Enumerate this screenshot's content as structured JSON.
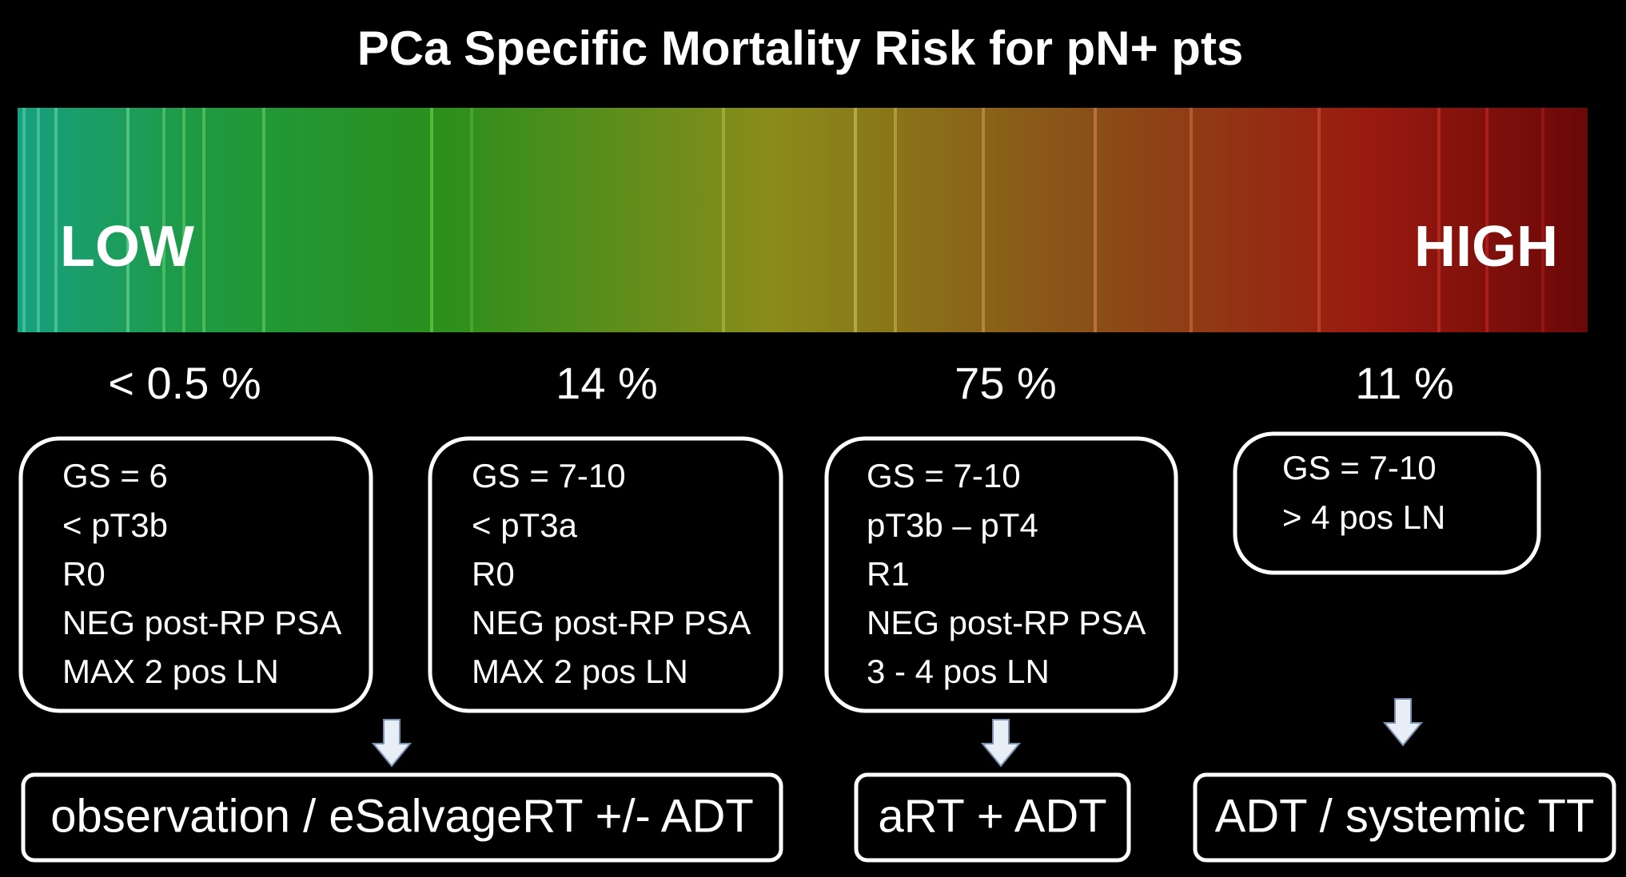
{
  "title": "PCa Specific Mortality Risk for pN+ pts",
  "scale": {
    "low": "LOW",
    "high": "HIGH"
  },
  "groups": [
    {
      "risk": "< 0.5 %",
      "criteria": [
        "GS = 6",
        "< pT3b",
        "R0",
        "NEG post-RP PSA",
        "MAX 2 pos LN"
      ]
    },
    {
      "risk": "14 %",
      "criteria": [
        "GS = 7-10",
        "< pT3a",
        "R0",
        "NEG post-RP PSA",
        "MAX 2 pos LN"
      ]
    },
    {
      "risk": "75 %",
      "criteria": [
        "GS = 7-10",
        "pT3b – pT4",
        "R1",
        "NEG post-RP PSA",
        "3 - 4 pos LN"
      ]
    },
    {
      "risk": "11 %",
      "criteria": [
        "GS = 7-10",
        "> 4 pos LN"
      ]
    }
  ],
  "treatments": [
    "observation / eSalvageRT +/- ADT",
    "aRT + ADT",
    "ADT / systemic TT"
  ]
}
